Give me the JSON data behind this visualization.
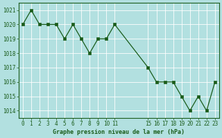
{
  "x": [
    0,
    1,
    2,
    3,
    4,
    5,
    6,
    7,
    8,
    9,
    10,
    11,
    15,
    16,
    17,
    18,
    19,
    20,
    21,
    22,
    23
  ],
  "y": [
    1020,
    1021,
    1020,
    1020,
    1020,
    1019,
    1020,
    1019,
    1018,
    1019,
    1019,
    1020,
    1017,
    1016,
    1016,
    1016,
    1015,
    1014,
    1015,
    1014,
    1016
  ],
  "line_color": "#1a5c1a",
  "marker_color": "#1a5c1a",
  "bg_color": "#b2e0e0",
  "grid_color": "#ffffff",
  "title": "Graphe pression niveau de la mer (hPa)",
  "title_color": "#1a5c1a",
  "ylim": [
    1013.5,
    1021.5
  ],
  "yticks": [
    1014,
    1015,
    1016,
    1017,
    1018,
    1019,
    1020,
    1021
  ],
  "xticks": [
    0,
    1,
    2,
    3,
    4,
    5,
    6,
    7,
    8,
    9,
    10,
    11,
    15,
    16,
    17,
    18,
    19,
    20,
    21,
    22,
    23
  ],
  "xlim": [
    -0.5,
    23.5
  ]
}
